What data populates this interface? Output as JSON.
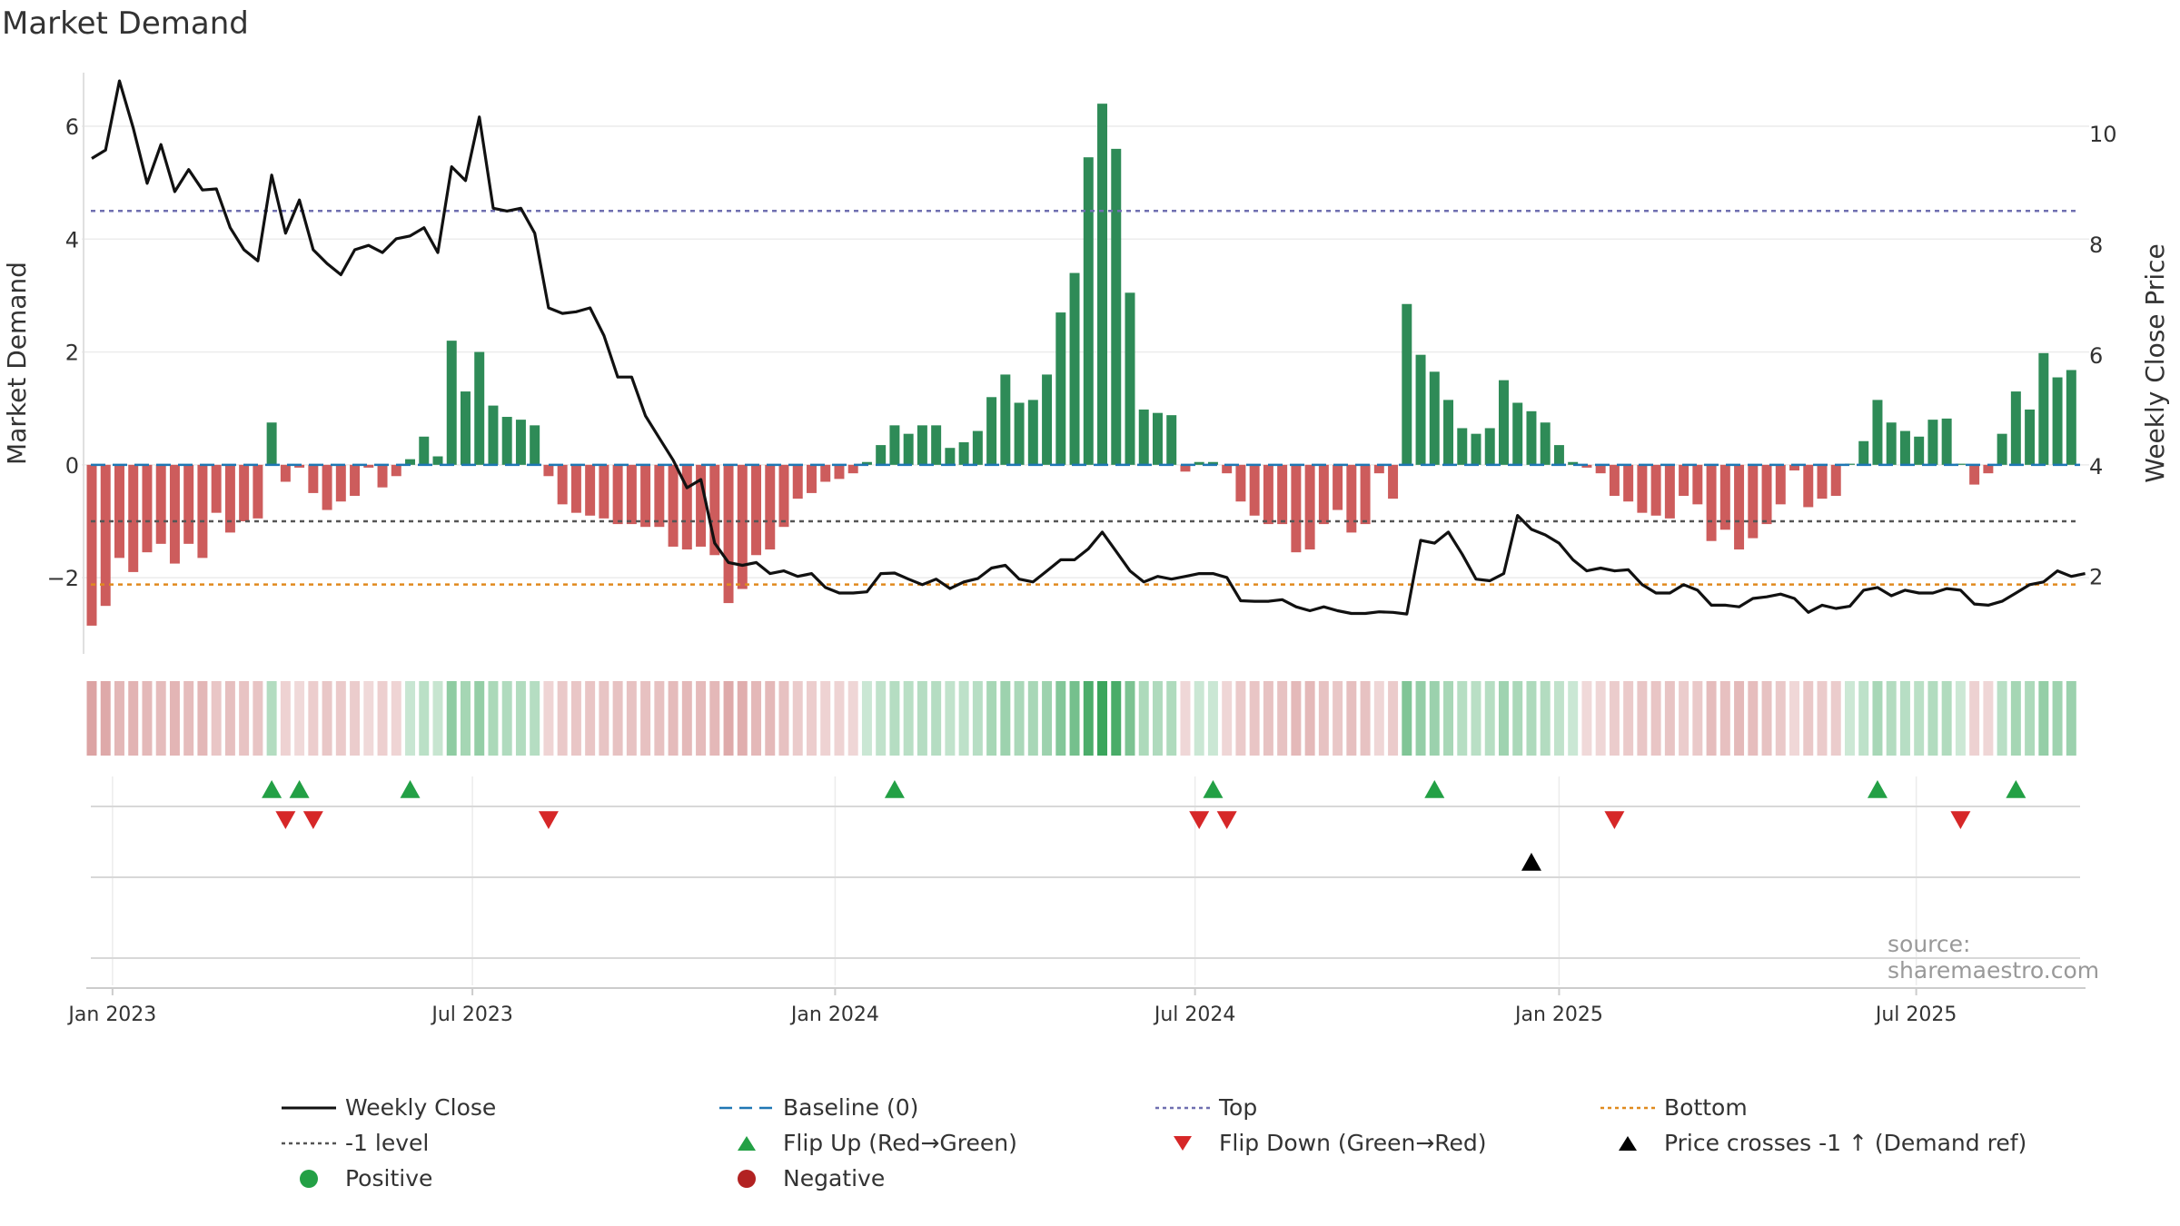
{
  "chart_data": {
    "type": "bar+line",
    "title": "Market Demand",
    "ylabel_left": "Market Demand",
    "ylabel_right": "Weekly Close Price",
    "ylim_left": [
      -3.35,
      6.95
    ],
    "ylim_right": [
      0.6,
      11.1
    ],
    "left_ticks": [
      -2,
      0,
      2,
      4,
      6
    ],
    "right_ticks": [
      2,
      4,
      6,
      8,
      10
    ],
    "x_ticks": [
      "Jan 2023",
      "Jul 2023",
      "Jan 2024",
      "Jul 2024",
      "Jan 2025",
      "Jul 2025"
    ],
    "x_tick_week_index": [
      1.5,
      27.5,
      53.7,
      79.7,
      106,
      131.8
    ],
    "reference_lines": {
      "top": 4.5,
      "minus_one": -1.0,
      "bottom": -2.12
    },
    "demand": [
      -2.85,
      -2.5,
      -1.65,
      -1.9,
      -1.55,
      -1.4,
      -1.75,
      -1.4,
      -1.65,
      -0.85,
      -1.2,
      -1.0,
      -0.95,
      0.75,
      -0.3,
      -0.05,
      -0.5,
      -0.8,
      -0.65,
      -0.55,
      -0.05,
      -0.4,
      -0.2,
      0.1,
      0.5,
      0.15,
      2.2,
      1.3,
      2.0,
      1.05,
      0.85,
      0.8,
      0.7,
      -0.2,
      -0.7,
      -0.85,
      -0.9,
      -0.95,
      -1.05,
      -1.05,
      -1.1,
      -1.1,
      -1.45,
      -1.5,
      -1.45,
      -1.6,
      -2.45,
      -2.2,
      -1.6,
      -1.5,
      -1.1,
      -0.6,
      -0.5,
      -0.3,
      -0.25,
      -0.15,
      0.05,
      0.35,
      0.7,
      0.55,
      0.7,
      0.7,
      0.3,
      0.4,
      0.6,
      1.2,
      1.6,
      1.1,
      1.15,
      1.6,
      2.7,
      3.4,
      5.45,
      6.4,
      5.6,
      3.05,
      0.98,
      0.92,
      0.88,
      -0.12,
      0.05,
      0.05,
      -0.15,
      -0.65,
      -0.9,
      -1.05,
      -1.05,
      -1.55,
      -1.5,
      -1.05,
      -0.8,
      -1.2,
      -1.05,
      -0.15,
      -0.6,
      2.85,
      1.95,
      1.65,
      1.15,
      0.65,
      0.55,
      0.65,
      1.5,
      1.1,
      0.95,
      0.75,
      0.35,
      0.05,
      -0.05,
      -0.15,
      -0.55,
      -0.65,
      -0.85,
      -0.9,
      -0.95,
      -0.55,
      -0.7,
      -1.35,
      -1.15,
      -1.5,
      -1.3,
      -1.05,
      -0.7,
      -0.1,
      -0.75,
      -0.6,
      -0.55,
      0.02,
      0.42,
      1.15,
      0.75,
      0.6,
      0.5,
      0.8,
      0.82,
      0.02,
      -0.35,
      -0.15,
      0.55,
      1.3,
      0.98,
      1.98,
      1.55,
      1.68
    ],
    "weekly_close": [
      9.55,
      9.7,
      10.95,
      10.1,
      9.1,
      9.8,
      8.95,
      9.35,
      8.98,
      9.0,
      8.3,
      7.9,
      7.7,
      9.25,
      8.2,
      8.8,
      7.9,
      7.65,
      7.45,
      7.9,
      7.98,
      7.85,
      8.1,
      8.15,
      8.3,
      7.85,
      9.4,
      9.15,
      10.3,
      8.65,
      8.6,
      8.65,
      8.2,
      6.85,
      6.75,
      6.78,
      6.85,
      6.35,
      5.6,
      5.6,
      4.9,
      4.5,
      4.1,
      3.6,
      3.75,
      2.6,
      2.25,
      2.2,
      2.25,
      2.05,
      2.1,
      2.0,
      2.05,
      1.8,
      1.7,
      1.7,
      1.72,
      2.05,
      2.06,
      1.95,
      1.85,
      1.95,
      1.78,
      1.9,
      1.96,
      2.15,
      2.2,
      1.95,
      1.9,
      2.1,
      2.3,
      2.3,
      2.5,
      2.8,
      2.45,
      2.1,
      1.9,
      2.0,
      1.95,
      2.0,
      2.05,
      2.05,
      1.98,
      1.56,
      1.55,
      1.55,
      1.58,
      1.45,
      1.38,
      1.45,
      1.38,
      1.33,
      1.33,
      1.36,
      1.35,
      1.32,
      2.65,
      2.6,
      2.8,
      2.4,
      1.95,
      1.92,
      2.05,
      3.1,
      2.85,
      2.75,
      2.6,
      2.3,
      2.1,
      2.15,
      2.1,
      2.12,
      1.85,
      1.7,
      1.7,
      1.85,
      1.75,
      1.48,
      1.48,
      1.45,
      1.6,
      1.63,
      1.68,
      1.6,
      1.35,
      1.48,
      1.42,
      1.46,
      1.75,
      1.8,
      1.65,
      1.75,
      1.7,
      1.7,
      1.78,
      1.75,
      1.5,
      1.48,
      1.55,
      1.7,
      1.85,
      1.9,
      2.1,
      2.0,
      2.05
    ],
    "flip_up_weeks": [
      13,
      15,
      23,
      58,
      81,
      97,
      129,
      139
    ],
    "flip_down_weeks": [
      14,
      16,
      33,
      80,
      82,
      110,
      135
    ],
    "price_cross_weeks": [
      104
    ],
    "legend": [
      {
        "label": "Weekly Close",
        "marker": "solid-line",
        "color": "#111111"
      },
      {
        "label": "Baseline (0)",
        "marker": "dashed-line",
        "color": "#1f77b4"
      },
      {
        "label": "Top",
        "marker": "dotted-line",
        "color": "#6f6fb0"
      },
      {
        "label": "Bottom",
        "marker": "dotted-line",
        "color": "#e08a1e"
      },
      {
        "label": "-1 level",
        "marker": "dotted-line",
        "color": "#555555"
      },
      {
        "label": "Flip Up (Red→Green)",
        "marker": "triangle-up",
        "color": "#23a045"
      },
      {
        "label": "Flip Down (Green→Red)",
        "marker": "triangle-down",
        "color": "#d62728"
      },
      {
        "label": "Price crosses -1 ↑ (Demand ref)",
        "marker": "triangle-up",
        "color": "#000000"
      },
      {
        "label": "Positive",
        "marker": "circle",
        "color": "#23a045"
      },
      {
        "label": "Negative",
        "marker": "circle",
        "color": "#b22222"
      }
    ],
    "source": "source: sharemaestro.com"
  },
  "colors": {
    "positive_bar": "#2e8b57",
    "negative_bar": "#cd5c5c",
    "weekly_close": "#111111",
    "baseline": "#1f77b4",
    "top": "#6f6fb0",
    "bottom": "#e08a1e",
    "minus_one": "#555555",
    "flip_up": "#23a045",
    "flip_down": "#d62728",
    "cross": "#000000"
  }
}
